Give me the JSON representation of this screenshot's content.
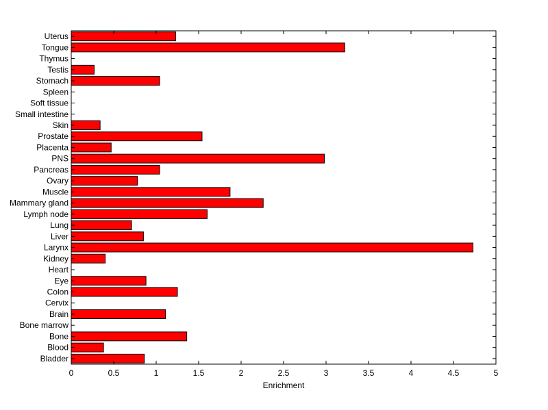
{
  "chart_data": {
    "type": "bar",
    "orientation": "horizontal",
    "categories": [
      "Bladder",
      "Blood",
      "Bone",
      "Bone marrow",
      "Brain",
      "Cervix",
      "Colon",
      "Eye",
      "Heart",
      "Kidney",
      "Larynx",
      "Liver",
      "Lung",
      "Lymph node",
      "Mammary gland",
      "Muscle",
      "Ovary",
      "Pancreas",
      "PNS",
      "Placenta",
      "Prostate",
      "Skin",
      "Small intestine",
      "Soft tissue",
      "Spleen",
      "Stomach",
      "Testis",
      "Thymus",
      "Tongue",
      "Uterus"
    ],
    "values": [
      0.86,
      0.38,
      1.36,
      0,
      1.11,
      0,
      1.25,
      0.88,
      0,
      0.4,
      4.73,
      0.85,
      0.71,
      1.6,
      2.26,
      1.87,
      0.78,
      1.04,
      2.98,
      0.47,
      1.54,
      0.34,
      0,
      0,
      0,
      1.04,
      0.27,
      0,
      3.22,
      1.23
    ],
    "xlabel": "Enrichment",
    "ylabel": "",
    "title": "",
    "xlim": [
      0,
      5
    ],
    "xticks": [
      "0",
      "0.5",
      "1",
      "1.5",
      "2",
      "2.5",
      "3",
      "3.5",
      "4",
      "4.5",
      "5"
    ],
    "grid": false,
    "bar_color": "#ff0000",
    "edge_color": "#000000"
  }
}
